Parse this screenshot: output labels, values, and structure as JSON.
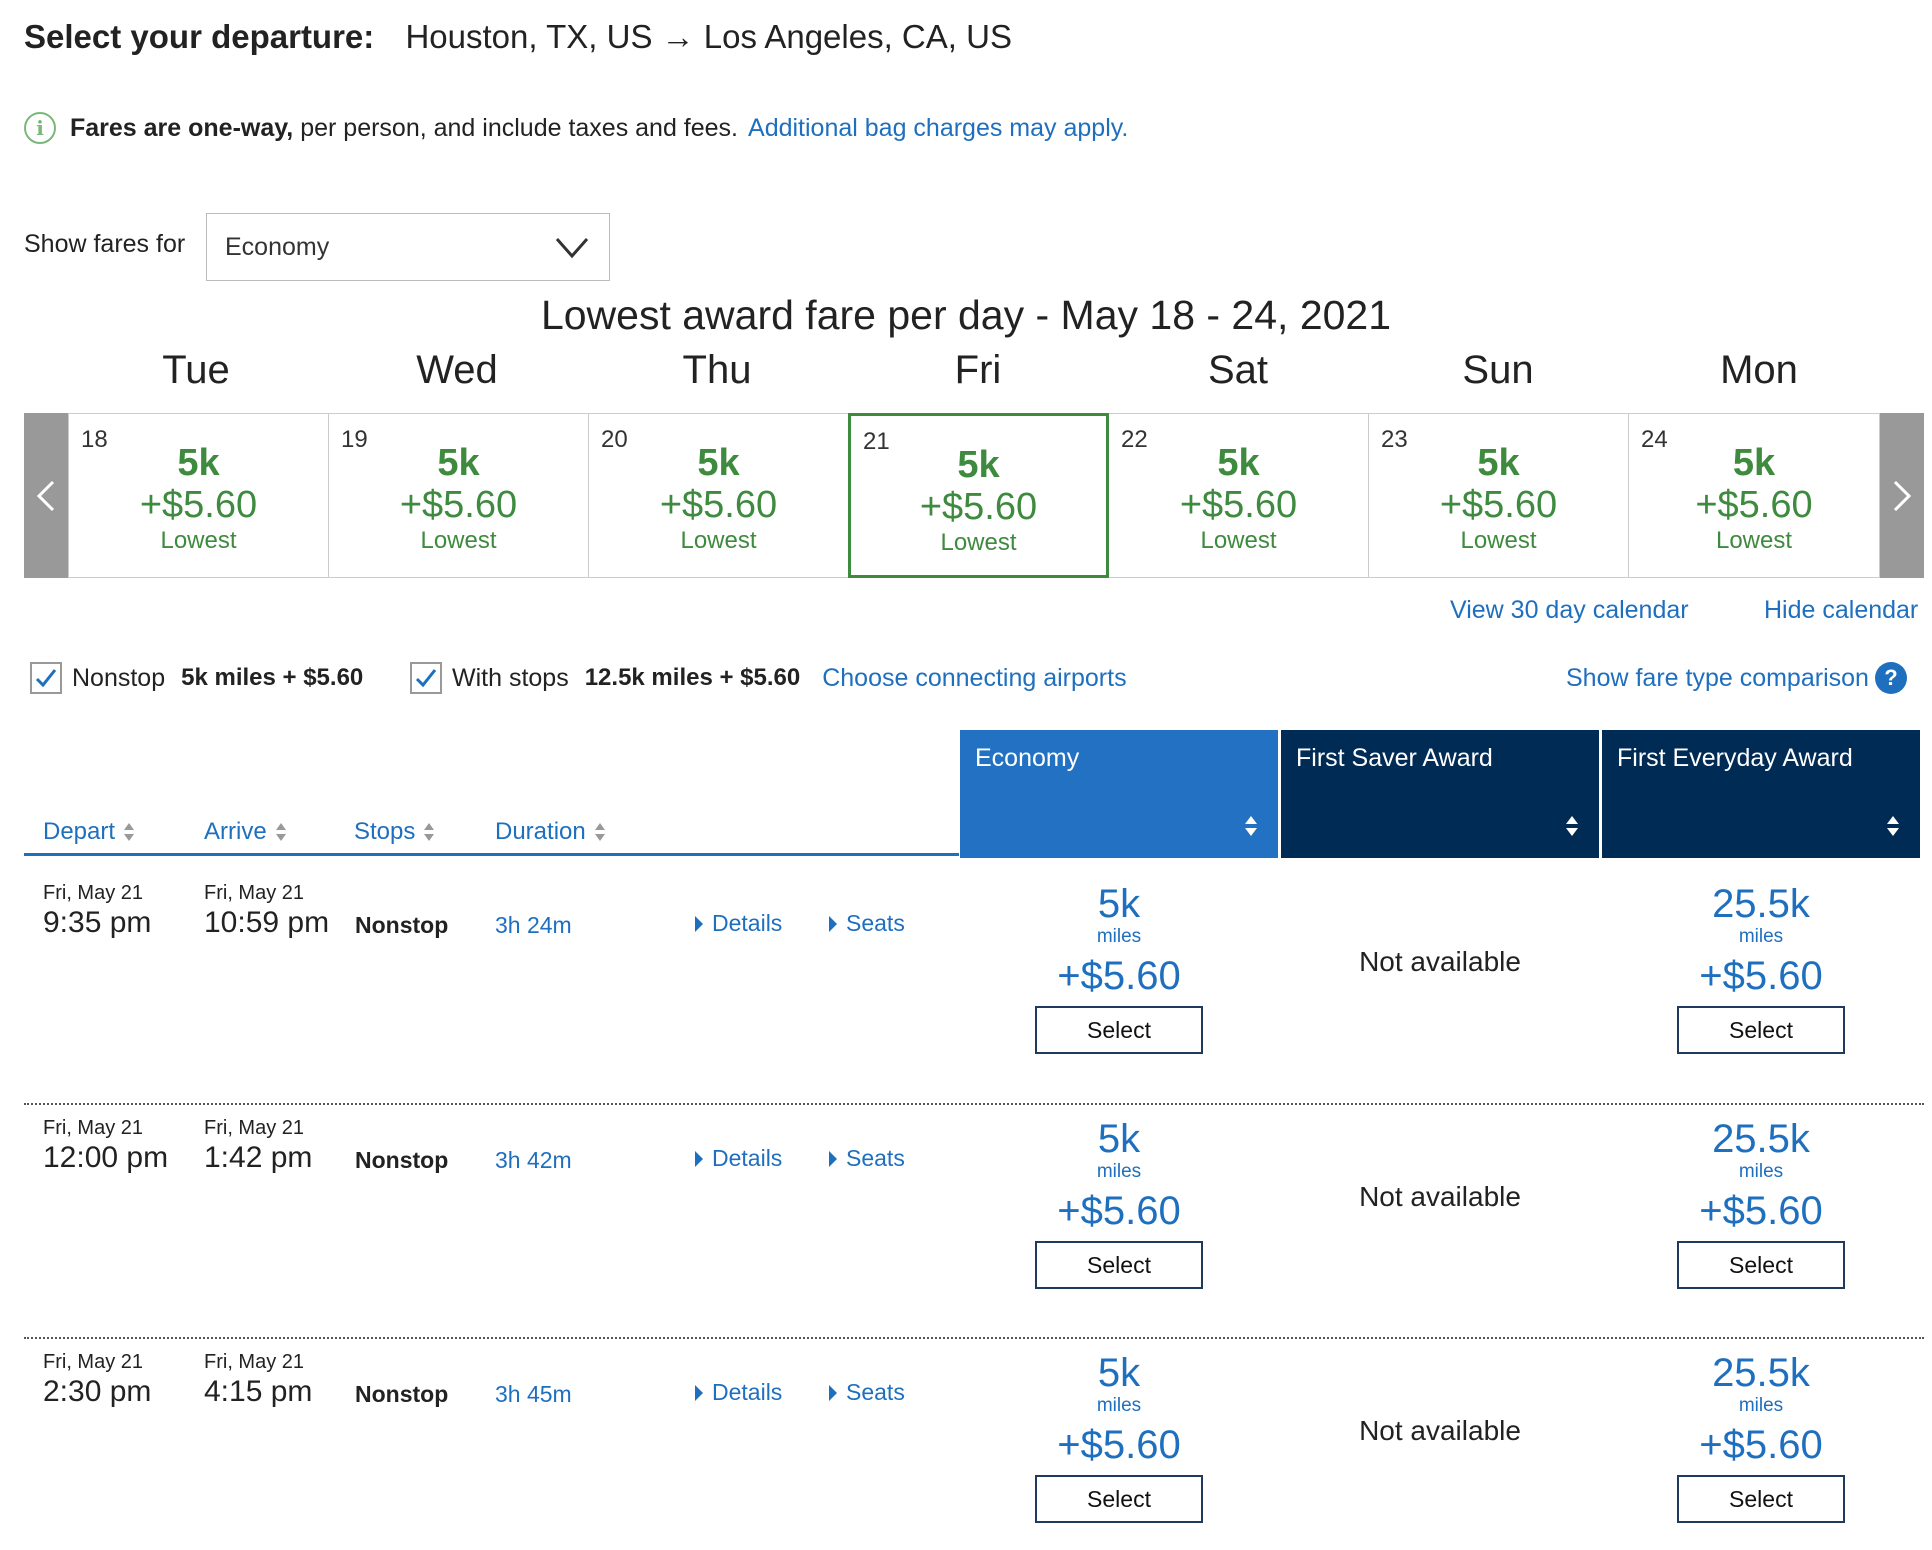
{
  "header": {
    "label": "Select your departure:",
    "route": "Houston, TX, US → Los Angeles, CA, US"
  },
  "notice": {
    "bold": "Fares are one-way,",
    "text": " per person, and include taxes and fees.",
    "link": "Additional bag charges may apply."
  },
  "fare_filter": {
    "label": "Show fares for",
    "value": "Economy"
  },
  "calendar": {
    "title": "Lowest award fare per day - May 18 - 24, 2021",
    "days": [
      {
        "dow": "Tue",
        "num": "18",
        "miles": "5k",
        "price": "+$5.60",
        "tag": "Lowest"
      },
      {
        "dow": "Wed",
        "num": "19",
        "miles": "5k",
        "price": "+$5.60",
        "tag": "Lowest"
      },
      {
        "dow": "Thu",
        "num": "20",
        "miles": "5k",
        "price": "+$5.60",
        "tag": "Lowest"
      },
      {
        "dow": "Fri",
        "num": "21",
        "miles": "5k",
        "price": "+$5.60",
        "tag": "Lowest"
      },
      {
        "dow": "Sat",
        "num": "22",
        "miles": "5k",
        "price": "+$5.60",
        "tag": "Lowest"
      },
      {
        "dow": "Sun",
        "num": "23",
        "miles": "5k",
        "price": "+$5.60",
        "tag": "Lowest"
      },
      {
        "dow": "Mon",
        "num": "24",
        "miles": "5k",
        "price": "+$5.60",
        "tag": "Lowest"
      }
    ],
    "selected_day": "21",
    "view_30": "View 30 day calendar",
    "hide": "Hide calendar"
  },
  "filters": {
    "nonstop_label": "Nonstop",
    "nonstop_value": "5k miles + $5.60",
    "stops_label": "With stops",
    "stops_value": "12.5k miles + $5.60",
    "connecting_link": "Choose connecting airports",
    "comparison_link": "Show fare type comparison",
    "help": "?"
  },
  "table": {
    "columns": {
      "depart": "Depart",
      "arrive": "Arrive",
      "stops": "Stops",
      "duration": "Duration"
    },
    "fare_columns": [
      "Economy",
      "First Saver Award",
      "First Everyday Award"
    ],
    "fare_colors": {
      "economy": "#2271c2",
      "first": "#002b55"
    },
    "rows": [
      {
        "depart_date": "Fri, May 21",
        "depart_time": "9:35 pm",
        "arrive_date": "Fri, May 21",
        "arrive_time": "10:59 pm",
        "stops": "Nonstop",
        "duration": "3h 24m",
        "details": "Details",
        "seats": "Seats",
        "economy": {
          "miles": "5k",
          "unit": "miles",
          "price": "+$5.60",
          "button": "Select"
        },
        "first_saver": "Not available",
        "first_everyday": {
          "miles": "25.5k",
          "unit": "miles",
          "price": "+$5.60",
          "button": "Select"
        }
      },
      {
        "depart_date": "Fri, May 21",
        "depart_time": "12:00 pm",
        "arrive_date": "Fri, May 21",
        "arrive_time": "1:42 pm",
        "stops": "Nonstop",
        "duration": "3h 42m",
        "details": "Details",
        "seats": "Seats",
        "economy": {
          "miles": "5k",
          "unit": "miles",
          "price": "+$5.60",
          "button": "Select"
        },
        "first_saver": "Not available",
        "first_everyday": {
          "miles": "25.5k",
          "unit": "miles",
          "price": "+$5.60",
          "button": "Select"
        }
      },
      {
        "depart_date": "Fri, May 21",
        "depart_time": "2:30 pm",
        "arrive_date": "Fri, May 21",
        "arrive_time": "4:15 pm",
        "stops": "Nonstop",
        "duration": "3h 45m",
        "details": "Details",
        "seats": "Seats",
        "economy": {
          "miles": "5k",
          "unit": "miles",
          "price": "+$5.60",
          "button": "Select"
        },
        "first_saver": "Not available",
        "first_everyday": {
          "miles": "25.5k",
          "unit": "miles",
          "price": "+$5.60",
          "button": "Select"
        }
      }
    ]
  }
}
